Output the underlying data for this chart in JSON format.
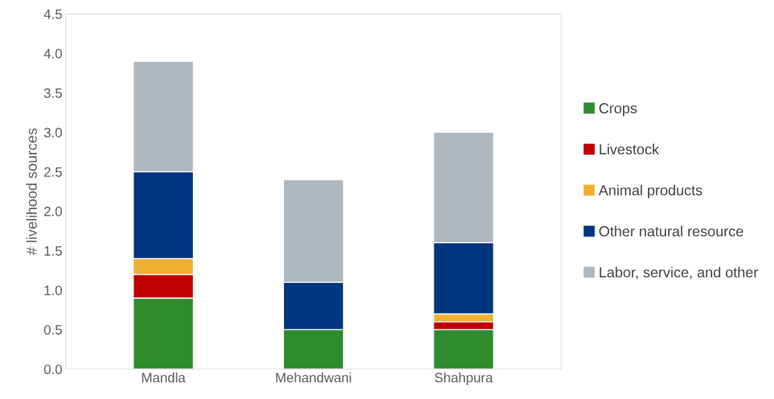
{
  "chart_data": {
    "type": "bar",
    "stacked": true,
    "ylabel": "# livelihood sources",
    "categories": [
      "Mandla",
      "Mehandwani",
      "Shahpura"
    ],
    "series": [
      {
        "name": "Crops",
        "color": "#2e8b2e",
        "values": [
          0.9,
          0.5,
          0.5
        ]
      },
      {
        "name": "Livestock",
        "color": "#c00000",
        "values": [
          0.3,
          0,
          0.1
        ]
      },
      {
        "name": "Animal products",
        "color": "#f0b030",
        "values": [
          0.2,
          0,
          0.1
        ]
      },
      {
        "name": "Other natural resource",
        "color": "#003580",
        "values": [
          1.1,
          0.6,
          0.9
        ]
      },
      {
        "name": "Labor, service, and other",
        "color": "#adb9bf",
        "values": [
          1.4,
          1.3,
          1.4
        ]
      }
    ],
    "ylim": [
      0,
      4.5
    ],
    "yticks": [
      {
        "value": 0,
        "label": "0.0"
      },
      {
        "value": 0.5,
        "label": "0.5"
      },
      {
        "value": 1,
        "label": "1.0"
      },
      {
        "value": 1.5,
        "label": "1.5"
      },
      {
        "value": 2,
        "label": "2.0"
      },
      {
        "value": 2.5,
        "label": "2.5"
      },
      {
        "value": 3,
        "label": "3.0"
      },
      {
        "value": 3.5,
        "label": "3.5"
      },
      {
        "value": 4,
        "label": "4.0"
      },
      {
        "value": 4.5,
        "label": "4.5"
      }
    ],
    "grid": false,
    "legend": "right"
  }
}
